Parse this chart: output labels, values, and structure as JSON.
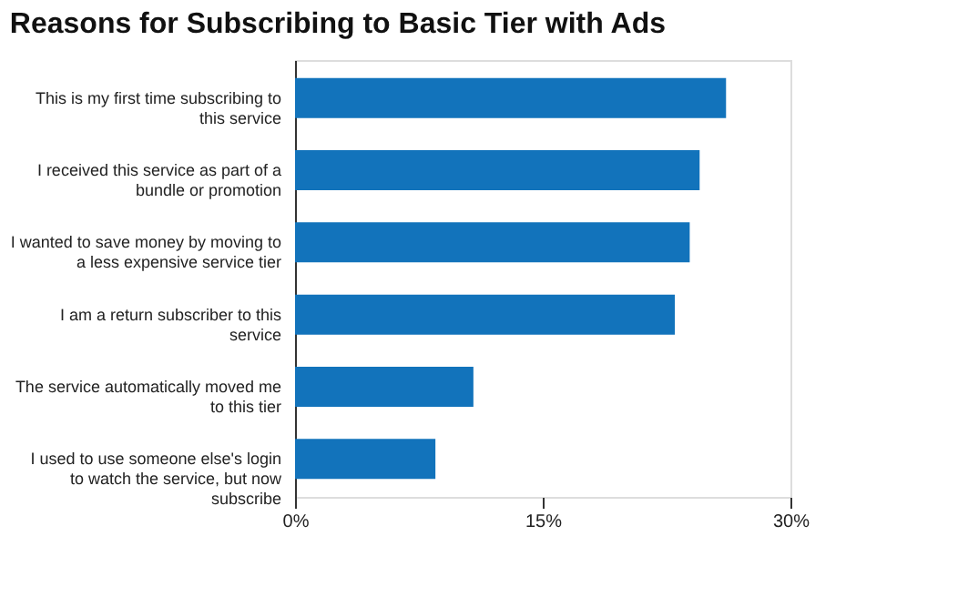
{
  "chart_data": {
    "type": "bar",
    "orientation": "horizontal",
    "title": "Reasons for Subscribing to Basic Tier with Ads",
    "categories": [
      "This is my first time subscribing to this service",
      "I received this service as part of a bundle or promotion",
      "I wanted to save money by moving to a less expensive service tier",
      "I am a return subscriber to this service",
      "The service automatically moved me to this tier",
      "I used to use someone else's login to watch the service, but now subscribe"
    ],
    "values": [
      26.1,
      24.5,
      23.9,
      23.0,
      10.8,
      8.5
    ],
    "color": "#1273bb",
    "xlim": [
      0,
      30
    ],
    "xticks": [
      {
        "value": 0,
        "label": "0%"
      },
      {
        "value": 15,
        "label": "15%"
      },
      {
        "value": 30,
        "label": "30%"
      }
    ],
    "grid": false
  }
}
